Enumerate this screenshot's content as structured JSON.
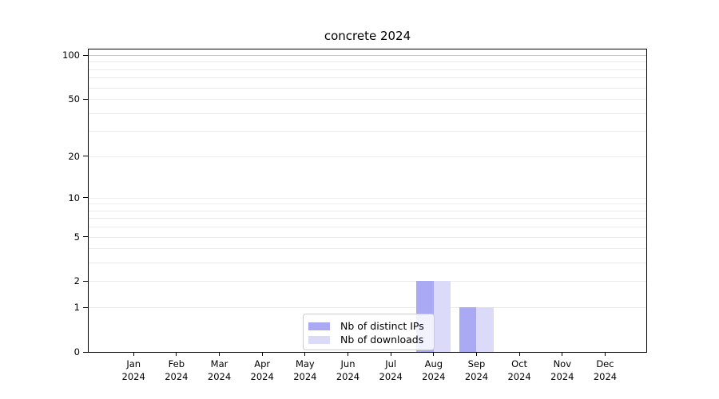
{
  "chart_data": {
    "type": "bar",
    "title": "concrete 2024",
    "categories": [
      "Jan",
      "Feb",
      "Mar",
      "Apr",
      "May",
      "Jun",
      "Jul",
      "Aug",
      "Sep",
      "Oct",
      "Nov",
      "Dec"
    ],
    "year_label": "2024",
    "series": [
      {
        "name": "Nb of distinct IPs",
        "color": "#a9a9f4",
        "values": [
          0,
          0,
          0,
          0,
          0,
          0,
          0,
          2,
          1,
          0,
          0,
          0
        ]
      },
      {
        "name": "Nb of downloads",
        "color": "#dbdbf9",
        "values": [
          0,
          0,
          0,
          0,
          0,
          0,
          0,
          2,
          1,
          0,
          0,
          0
        ]
      }
    ],
    "yscale": "log1p",
    "yticks": [
      0,
      1,
      2,
      5,
      10,
      20,
      50,
      100
    ],
    "ylim": [
      0,
      113
    ],
    "grid": true,
    "legend_position": "bottom-center-inside",
    "colors": {
      "gridline": "#ececec",
      "gridline_top": "#c6c6c6",
      "axis": "#000000",
      "text": "#000000",
      "background": "#ffffff"
    }
  }
}
